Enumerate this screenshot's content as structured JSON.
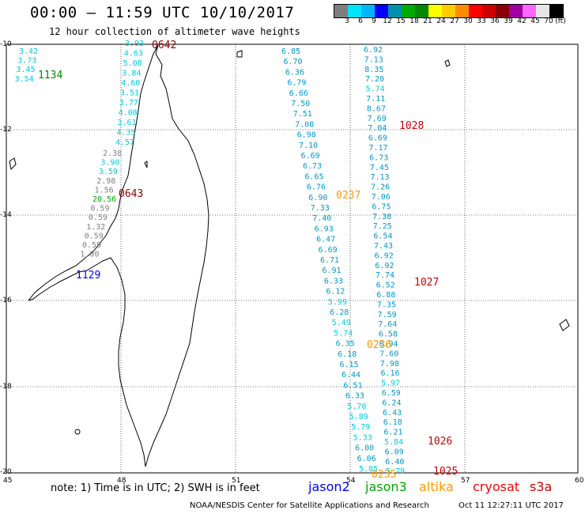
{
  "header": {
    "title": "00:00 — 11:59 UTC 10/10/2017",
    "subtitle": "12 hour collection of altimeter wave heights"
  },
  "colorbar": {
    "colors": [
      "#7f7f7f",
      "#00e5ff",
      "#00b7ff",
      "#0000ff",
      "#0090b0",
      "#00aa00",
      "#008800",
      "#ffff00",
      "#ffcc00",
      "#ff8c00",
      "#ff0000",
      "#cc0000",
      "#8b0000",
      "#a000a0",
      "#ff66ff",
      "#e5e5e5",
      "#000000"
    ],
    "labels": [
      "3",
      "6",
      "9",
      "12",
      "15",
      "18",
      "21",
      "24",
      "27",
      "30",
      "33",
      "36",
      "39",
      "42",
      "45",
      "70",
      "(ft)"
    ]
  },
  "axes": {
    "lat_labels": [
      "-10",
      "-12",
      "-14",
      "-16",
      "-18",
      "-20"
    ],
    "lon_labels": [
      "45",
      "48",
      "51",
      "54",
      "57",
      "60"
    ]
  },
  "tracks": [
    {
      "id": "t1",
      "values": [
        "6.85",
        "6.70",
        "6.36",
        "6.79",
        "6.66",
        "7.50",
        "7.51",
        "7.08",
        "6.98",
        "7.10",
        "6.69",
        "6.73",
        "6.65",
        "6.76",
        "6.90",
        "7.33",
        "7.40",
        "6.93",
        "6.47",
        "6.69",
        "6.71",
        "6.91",
        "6.33",
        "6.12",
        "5.99",
        "6.28",
        "5.49",
        "5.74",
        "6.35",
        "6.18",
        "6.15",
        "6.44",
        "6.51",
        "6.33",
        "5.70",
        "5.89",
        "5.79",
        "5.33",
        "6.00",
        "6.06",
        "5.85"
      ]
    },
    {
      "id": "t2",
      "values": [
        "6.92",
        "7.13",
        "8.35",
        "7.20",
        "5.74",
        "7.11",
        "8.67",
        "7.69",
        "7.04",
        "6.69",
        "7.17",
        "6.73",
        "7.45",
        "7.13",
        "7.26",
        "7.06",
        "6.75",
        "7.38",
        "7.25",
        "6.54",
        "7.43",
        "6.92",
        "6.92",
        "7.74",
        "6.52",
        "6.88",
        "7.35",
        "7.59",
        "7.64",
        "6.58",
        "6.94",
        "7.60",
        "7.98",
        "6.16",
        "5.97",
        "6.59",
        "6.24",
        "6.43",
        "6.18",
        "6.21",
        "5.84",
        "6.09",
        "6.40",
        "5.79"
      ]
    },
    {
      "id": "t3a",
      "values": [
        "3.93",
        "4.63",
        "5.08",
        "3.84",
        "4.60",
        "3.51",
        "3.77",
        "4.08",
        "3.61",
        "4.35",
        "4.57"
      ]
    },
    {
      "id": "t3b",
      "values": [
        "2.38",
        "3.90",
        "3.59",
        "2.98",
        "1.56",
        "20.56",
        "0.59",
        "0.59",
        "1.32",
        "0.59",
        "0.59",
        "1.00"
      ]
    },
    {
      "id": "t4",
      "values": [
        "3.42",
        "3.73",
        "3.45",
        "3.54"
      ]
    }
  ],
  "time_labels": [
    {
      "text": "0642"
    },
    {
      "text": "1134"
    },
    {
      "text": "1028"
    },
    {
      "text": "0643"
    },
    {
      "text": "0237"
    },
    {
      "text": "1027"
    },
    {
      "text": "1129"
    },
    {
      "text": "0236"
    },
    {
      "text": "1026"
    },
    {
      "text": "0235"
    },
    {
      "text": "1025"
    }
  ],
  "legend": {
    "note": "note: 1) Time is in UTC; 2) SWH is in feet",
    "satellites": [
      {
        "name": "jason2",
        "color": "#0000ff"
      },
      {
        "name": "jason3",
        "color": "#00aa00"
      },
      {
        "name": "altika",
        "color": "#ff9900"
      },
      {
        "name": "cryosat",
        "color": "#ff0000"
      },
      {
        "name": "s3a",
        "color": "#cc0000"
      }
    ]
  },
  "footer": {
    "credit": "NOAA/NESDIS Center for Satellite Applications and Research",
    "timestamp": "Oct 11 12:27:11 UTC 2017"
  }
}
